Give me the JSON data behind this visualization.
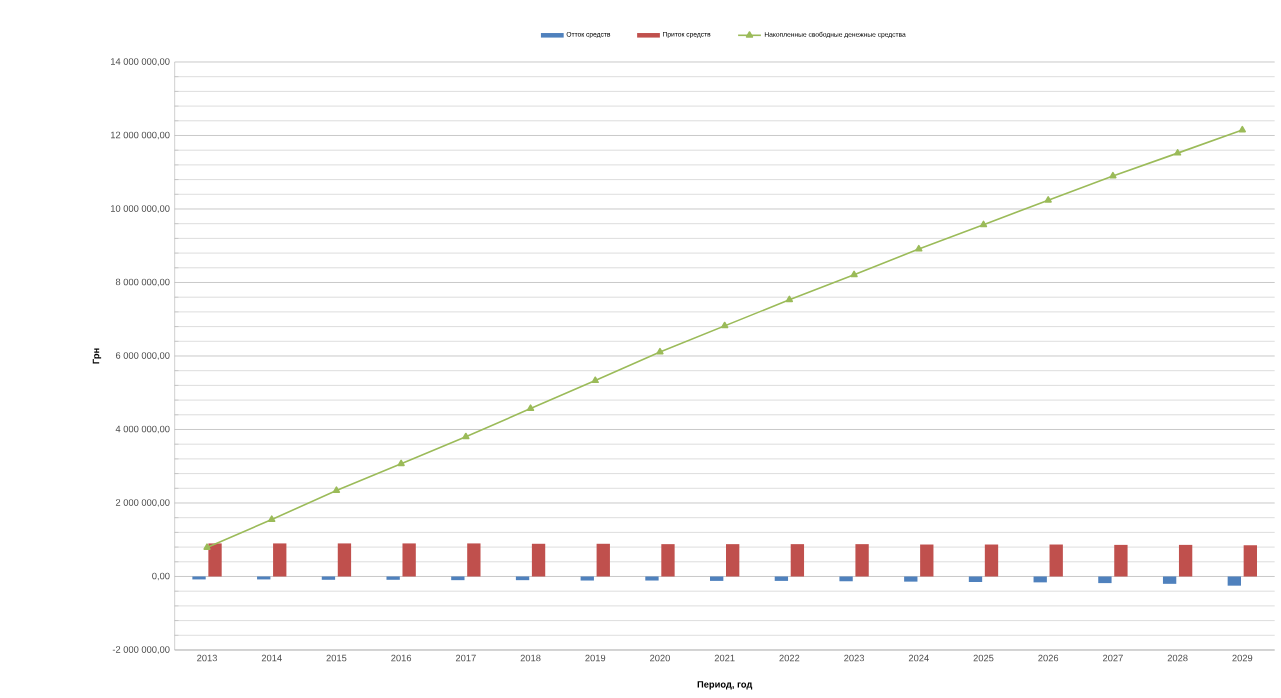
{
  "chart_data": {
    "type": "bar",
    "ylabel": "Грн",
    "xlabel": "Период, год",
    "categories": [
      "2013",
      "2014",
      "2015",
      "2016",
      "2017",
      "2018",
      "2019",
      "2020",
      "2021",
      "2022",
      "2023",
      "2024",
      "2025",
      "2026",
      "2027",
      "2028",
      "2029"
    ],
    "series": [
      {
        "name": "Отток средств",
        "color": "#4f81bd",
        "values": [
          -80000,
          -80000,
          -90000,
          -90000,
          -100000,
          -100000,
          -110000,
          -110000,
          -120000,
          -120000,
          -130000,
          -140000,
          -150000,
          -160000,
          -180000,
          -200000,
          -250000
        ]
      },
      {
        "name": "Приток средств",
        "color": "#c0504d",
        "values": [
          900000,
          900000,
          900000,
          900000,
          900000,
          890000,
          890000,
          880000,
          880000,
          880000,
          880000,
          870000,
          870000,
          870000,
          860000,
          860000,
          850000
        ]
      },
      {
        "name": "Накопленные свободные денежные средства",
        "type": "line",
        "color": "#9bbb59",
        "values": [
          790000,
          1550000,
          2340000,
          3070000,
          3800000,
          4570000,
          5330000,
          6110000,
          6820000,
          7530000,
          8210000,
          8910000,
          9570000,
          10240000,
          10900000,
          11520000,
          12150000
        ]
      }
    ],
    "ylim": [
      -2000000,
      14000000
    ],
    "yticks": [
      {
        "value": -2000000,
        "label": "-2 000 000,00"
      },
      {
        "value": 0,
        "label": "0,00"
      },
      {
        "value": 2000000,
        "label": "2 000 000,00"
      },
      {
        "value": 4000000,
        "label": "4 000 000,00"
      },
      {
        "value": 6000000,
        "label": "6 000 000,00"
      },
      {
        "value": 8000000,
        "label": "8 000 000,00"
      },
      {
        "value": 10000000,
        "label": "10 000 000,00"
      },
      {
        "value": 12000000,
        "label": "12 000 000,00"
      },
      {
        "value": 14000000,
        "label": "14 000 000,00"
      }
    ],
    "grid": "y",
    "legend": "top",
    "marker": "triangle"
  }
}
